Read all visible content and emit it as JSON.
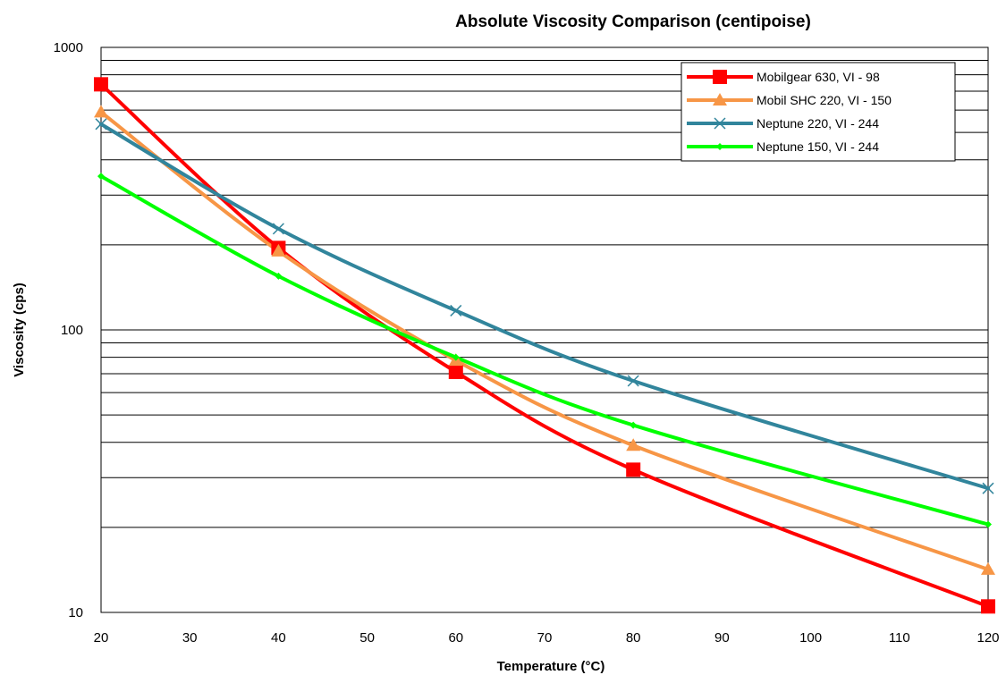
{
  "chart_data": {
    "type": "line",
    "title": "Absolute Viscosity Comparison (centipoise)",
    "xlabel": "Temperature (°C)",
    "ylabel": "Viscosity (cps)",
    "xlim": [
      20,
      120
    ],
    "ylim": [
      10,
      1000
    ],
    "y_scale": "log",
    "x_ticks": [
      "20",
      "30",
      "40",
      "50",
      "60",
      "70",
      "80",
      "90",
      "100",
      "110",
      "120"
    ],
    "y_ticks": [
      {
        "value": 1000,
        "label": "1000"
      },
      {
        "value": 100,
        "label": "100"
      },
      {
        "value": 10,
        "label": "10"
      }
    ],
    "y_minor_gridlines": [
      20,
      30,
      40,
      50,
      60,
      70,
      80,
      90,
      200,
      300,
      400,
      500,
      600,
      700,
      800,
      900
    ],
    "grid": "horizontal",
    "legend_position": "top-right",
    "x": [
      20,
      40,
      60,
      80,
      120
    ],
    "series": [
      {
        "name": "Mobilgear 630, VI - 98",
        "color": "#ff0000",
        "marker": "square",
        "values": [
          740,
          195,
          71,
          32,
          10.5
        ]
      },
      {
        "name": "Mobil SHC 220, VI - 150",
        "color": "#f79646",
        "marker": "triangle",
        "values": [
          590,
          190,
          78,
          39,
          14.2
        ]
      },
      {
        "name": "Neptune 220, VI - 244",
        "color": "#31859c",
        "marker": "x",
        "values": [
          535,
          228,
          117,
          66,
          27.5
        ]
      },
      {
        "name": "Neptune 150, VI - 244",
        "color": "#00ff00",
        "marker": "diamond",
        "values": [
          350,
          155,
          80,
          46,
          20.5
        ]
      }
    ]
  }
}
